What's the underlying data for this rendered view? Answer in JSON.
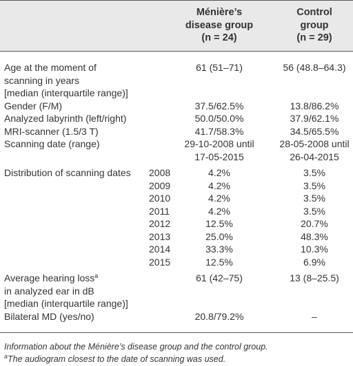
{
  "table": {
    "header": {
      "md": [
        "Ménière’s",
        "disease group",
        "(n = 24)"
      ],
      "control": [
        "Control",
        "group",
        "(n = 29)"
      ]
    },
    "rows": [
      {
        "label": [
          "Age at the moment of",
          "scanning in years",
          "[median (interquartile range)]"
        ],
        "md": [
          "61 (51–71)"
        ],
        "control": [
          "56 (48.8–64.3)"
        ]
      },
      {
        "label": [
          "Gender (F/M)"
        ],
        "md": [
          "37.5/62.5%"
        ],
        "control": [
          "13.8/86.2%"
        ]
      },
      {
        "label": [
          "Analyzed labyrinth (left/right)"
        ],
        "md": [
          "50.0/50.0%"
        ],
        "control": [
          "37.9/62.1%"
        ]
      },
      {
        "label": [
          "MRI-scanner (1.5/3 T)"
        ],
        "md": [
          "41.7/58.3%"
        ],
        "control": [
          "34.5/65.5%"
        ]
      },
      {
        "label": [
          "Scanning date (range)"
        ],
        "md": [
          "29-10-2008 until",
          "17-05-2015"
        ],
        "control": [
          "28-05-2008 until",
          "26-04-2015"
        ]
      },
      {
        "label": [
          "Distribution of scanning dates"
        ],
        "sub": [
          {
            "year": "2008",
            "md": "4.2%",
            "control": "3.5%"
          },
          {
            "year": "2009",
            "md": "4.2%",
            "control": "3.5%"
          },
          {
            "year": "2010",
            "md": "4.2%",
            "control": "3.5%"
          },
          {
            "year": "2011",
            "md": "4.2%",
            "control": "3.5%"
          },
          {
            "year": "2012",
            "md": "12.5%",
            "control": "20.7%"
          },
          {
            "year": "2013",
            "md": "25.0%",
            "control": "48.3%"
          },
          {
            "year": "2014",
            "md": "33.3%",
            "control": "10.3%"
          },
          {
            "year": "2015",
            "md": "12.5%",
            "control": "6.9%"
          }
        ]
      },
      {
        "label": [
          "Average hearing loss",
          "in analyzed ear in dB",
          "[median (interquartile range)]"
        ],
        "mark": "a",
        "md": [
          "61 (42–75)"
        ],
        "control": [
          "13 (8–25.5)"
        ]
      },
      {
        "label": [
          "Bilateral MD (yes/no)"
        ],
        "md": [
          "20.8/79.2%"
        ],
        "control": [
          "–"
        ]
      }
    ],
    "caption": "Information about the Ménière’s disease group and the control group.",
    "footnote": {
      "mark": "a",
      "text": "The audiogram closest to the date of scanning was used."
    }
  }
}
